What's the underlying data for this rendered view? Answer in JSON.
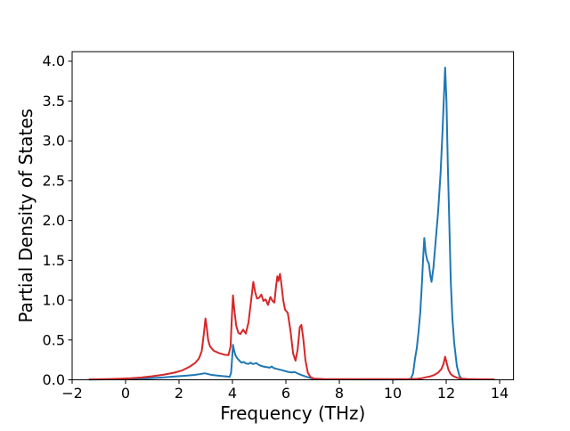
{
  "chart_data": {
    "type": "line",
    "title": "",
    "xlabel": "Frequency (THz)",
    "ylabel": "Partial Density of States",
    "xlim": [
      -2.0,
      14.52
    ],
    "ylim": [
      0,
      4.12
    ],
    "x_ticks": [
      -2,
      0,
      2,
      4,
      6,
      8,
      10,
      12,
      14
    ],
    "y_ticks": [
      0.0,
      0.5,
      1.0,
      1.5,
      2.0,
      2.5,
      3.0,
      3.5,
      4.0
    ],
    "grid": false,
    "legend": "none",
    "frame_color": "#000000",
    "series": [
      {
        "name": "blue-series",
        "color": "#1f77b4",
        "line_width": 2,
        "points": [
          [
            -1.35,
            0.003
          ],
          [
            -0.8,
            0.005
          ],
          [
            -0.2,
            0.008
          ],
          [
            0.4,
            0.013
          ],
          [
            0.9,
            0.02
          ],
          [
            1.4,
            0.03
          ],
          [
            1.8,
            0.04
          ],
          [
            2.2,
            0.05
          ],
          [
            2.55,
            0.06
          ],
          [
            2.8,
            0.072
          ],
          [
            2.95,
            0.082
          ],
          [
            3.05,
            0.075
          ],
          [
            3.2,
            0.063
          ],
          [
            3.4,
            0.055
          ],
          [
            3.6,
            0.047
          ],
          [
            3.78,
            0.042
          ],
          [
            3.9,
            0.038
          ],
          [
            3.95,
            0.09
          ],
          [
            3.99,
            0.28
          ],
          [
            4.02,
            0.44
          ],
          [
            4.06,
            0.37
          ],
          [
            4.11,
            0.31
          ],
          [
            4.18,
            0.27
          ],
          [
            4.26,
            0.24
          ],
          [
            4.34,
            0.215
          ],
          [
            4.42,
            0.225
          ],
          [
            4.5,
            0.205
          ],
          [
            4.6,
            0.2
          ],
          [
            4.68,
            0.215
          ],
          [
            4.76,
            0.198
          ],
          [
            4.84,
            0.205
          ],
          [
            4.9,
            0.21
          ],
          [
            4.97,
            0.19
          ],
          [
            5.07,
            0.175
          ],
          [
            5.18,
            0.165
          ],
          [
            5.3,
            0.158
          ],
          [
            5.4,
            0.152
          ],
          [
            5.47,
            0.168
          ],
          [
            5.54,
            0.148
          ],
          [
            5.65,
            0.138
          ],
          [
            5.8,
            0.125
          ],
          [
            5.95,
            0.112
          ],
          [
            6.1,
            0.098
          ],
          [
            6.22,
            0.092
          ],
          [
            6.33,
            0.098
          ],
          [
            6.45,
            0.078
          ],
          [
            6.6,
            0.058
          ],
          [
            6.75,
            0.04
          ],
          [
            6.9,
            0.024
          ],
          [
            7.05,
            0.014
          ],
          [
            7.4,
            0.007
          ],
          [
            8.0,
            0.005
          ],
          [
            9.0,
            0.004
          ],
          [
            10.0,
            0.004
          ],
          [
            10.55,
            0.005
          ],
          [
            10.68,
            0.015
          ],
          [
            10.76,
            0.08
          ],
          [
            10.83,
            0.26
          ],
          [
            10.9,
            0.4
          ],
          [
            10.97,
            0.62
          ],
          [
            11.03,
            0.85
          ],
          [
            11.09,
            1.2
          ],
          [
            11.14,
            1.55
          ],
          [
            11.18,
            1.78
          ],
          [
            11.23,
            1.6
          ],
          [
            11.29,
            1.5
          ],
          [
            11.35,
            1.46
          ],
          [
            11.41,
            1.3
          ],
          [
            11.45,
            1.23
          ],
          [
            11.52,
            1.4
          ],
          [
            11.6,
            1.72
          ],
          [
            11.7,
            2.12
          ],
          [
            11.79,
            2.6
          ],
          [
            11.86,
            3.1
          ],
          [
            11.92,
            3.6
          ],
          [
            11.96,
            3.92
          ],
          [
            12.01,
            3.5
          ],
          [
            12.06,
            2.7
          ],
          [
            12.11,
            2.05
          ],
          [
            12.17,
            1.25
          ],
          [
            12.23,
            0.78
          ],
          [
            12.3,
            0.46
          ],
          [
            12.4,
            0.17
          ],
          [
            12.5,
            0.045
          ],
          [
            12.58,
            0.012
          ]
        ]
      },
      {
        "name": "red-series",
        "color": "#d62728",
        "line_width": 2,
        "points": [
          [
            -1.35,
            0.005
          ],
          [
            -1.0,
            0.007
          ],
          [
            -0.6,
            0.01
          ],
          [
            -0.2,
            0.014
          ],
          [
            0.2,
            0.02
          ],
          [
            0.6,
            0.03
          ],
          [
            1.0,
            0.045
          ],
          [
            1.4,
            0.063
          ],
          [
            1.8,
            0.088
          ],
          [
            2.1,
            0.115
          ],
          [
            2.4,
            0.165
          ],
          [
            2.6,
            0.21
          ],
          [
            2.75,
            0.27
          ],
          [
            2.85,
            0.36
          ],
          [
            2.93,
            0.58
          ],
          [
            2.99,
            0.77
          ],
          [
            3.04,
            0.65
          ],
          [
            3.09,
            0.5
          ],
          [
            3.16,
            0.42
          ],
          [
            3.3,
            0.365
          ],
          [
            3.5,
            0.335
          ],
          [
            3.7,
            0.315
          ],
          [
            3.85,
            0.31
          ],
          [
            3.93,
            0.42
          ],
          [
            3.98,
            0.8
          ],
          [
            4.02,
            1.06
          ],
          [
            4.07,
            0.88
          ],
          [
            4.14,
            0.68
          ],
          [
            4.22,
            0.59
          ],
          [
            4.3,
            0.575
          ],
          [
            4.4,
            0.63
          ],
          [
            4.5,
            0.58
          ],
          [
            4.6,
            0.72
          ],
          [
            4.7,
            1.0
          ],
          [
            4.78,
            1.23
          ],
          [
            4.85,
            1.1
          ],
          [
            4.92,
            1.02
          ],
          [
            5.0,
            1.03
          ],
          [
            5.08,
            1.07
          ],
          [
            5.16,
            0.99
          ],
          [
            5.24,
            1.01
          ],
          [
            5.33,
            0.94
          ],
          [
            5.42,
            1.04
          ],
          [
            5.5,
            0.99
          ],
          [
            5.57,
            0.97
          ],
          [
            5.63,
            1.17
          ],
          [
            5.68,
            1.3
          ],
          [
            5.72,
            1.24
          ],
          [
            5.78,
            1.33
          ],
          [
            5.84,
            1.18
          ],
          [
            5.9,
            1.0
          ],
          [
            5.97,
            0.88
          ],
          [
            6.07,
            0.84
          ],
          [
            6.17,
            0.62
          ],
          [
            6.27,
            0.33
          ],
          [
            6.36,
            0.24
          ],
          [
            6.44,
            0.38
          ],
          [
            6.52,
            0.66
          ],
          [
            6.58,
            0.69
          ],
          [
            6.65,
            0.52
          ],
          [
            6.73,
            0.25
          ],
          [
            6.82,
            0.09
          ],
          [
            6.92,
            0.035
          ],
          [
            7.05,
            0.015
          ],
          [
            7.4,
            0.01
          ],
          [
            8.0,
            0.008
          ],
          [
            9.0,
            0.008
          ],
          [
            10.0,
            0.008
          ],
          [
            10.6,
            0.009
          ],
          [
            10.9,
            0.012
          ],
          [
            11.1,
            0.02
          ],
          [
            11.25,
            0.033
          ],
          [
            11.4,
            0.042
          ],
          [
            11.55,
            0.06
          ],
          [
            11.7,
            0.09
          ],
          [
            11.82,
            0.135
          ],
          [
            11.9,
            0.2
          ],
          [
            11.96,
            0.29
          ],
          [
            12.02,
            0.21
          ],
          [
            12.08,
            0.13
          ],
          [
            12.16,
            0.075
          ],
          [
            12.26,
            0.048
          ],
          [
            12.4,
            0.026
          ],
          [
            12.55,
            0.015
          ],
          [
            12.8,
            0.01
          ],
          [
            13.3,
            0.007
          ],
          [
            13.78,
            0.006
          ]
        ]
      }
    ]
  }
}
